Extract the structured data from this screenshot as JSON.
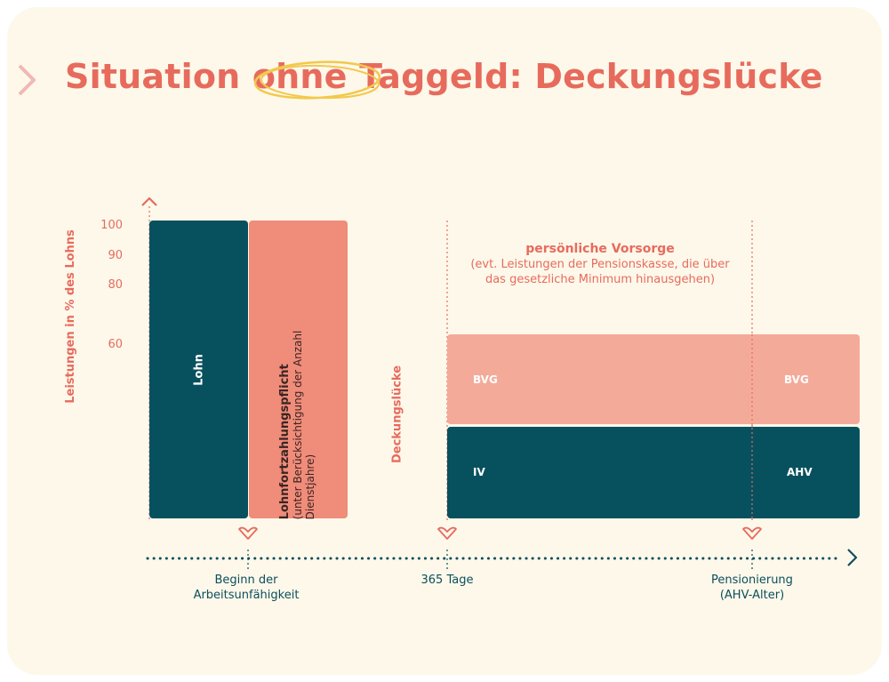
{
  "title": {
    "part1": "Situation ",
    "highlight": "ohne",
    "part2": " Taggeld: Deckungslücke"
  },
  "y_axis": {
    "label": "Leistungen in % des Lohns",
    "ticks": [
      "100",
      "90",
      "80",
      "60"
    ]
  },
  "left_blocks": {
    "lohn": "Lohn",
    "lohnfortzahlung_title": "Lohnfortzahlungspflicht",
    "lohnfortzahlung_note_1": "(unter Berücksichtigung der Anzahl",
    "lohnfortzahlung_note_2": "Dienstjahre)"
  },
  "gap_label": "Deckungslücke",
  "personal_provision": {
    "title": "persönliche Vorsorge",
    "line1": "(evt. Leistungen der Pensionskasse, die über",
    "line2": "das gesetzliche Minimum hinausgehen)"
  },
  "bands": {
    "bvg_left": "BVG",
    "bvg_right": "BVG",
    "iv": "IV",
    "ahv": "AHV"
  },
  "x_axis": {
    "m1_line1": "Beginn der",
    "m1_line2": "Arbeitsunfähigkeit",
    "m2": "365 Tage",
    "m3_line1": "Pensionierung",
    "m3_line2": "(AHV-Alter)"
  },
  "colors": {
    "background": "#fdf8ea",
    "coral": "#e76b5d",
    "dark_teal": "#07515f",
    "salmon": "#f08c7a",
    "light_salmon": "#f4aa99",
    "highlight_yellow": "#f2c94c"
  },
  "icons": [
    "chevron-right-icon",
    "chevron-up-icon",
    "heart-chevron-icon",
    "arrow-right-icon"
  ]
}
